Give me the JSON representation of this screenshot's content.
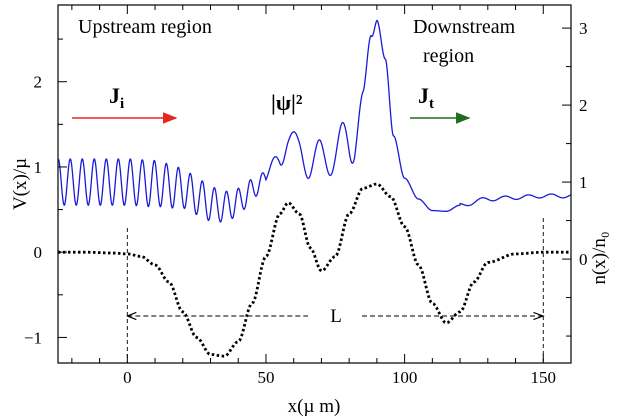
{
  "chart_data": {
    "type": "line",
    "xlabel": "x(µ m)",
    "ylabel_left": "V(x)/µ",
    "ylabel_right": "n(x)/n₀",
    "xlim": [
      -25,
      160
    ],
    "ylim_left": [
      -1.3,
      2.9
    ],
    "ylim_right": [
      -1.35,
      3.3
    ],
    "x_ticks": [
      0,
      50,
      100,
      150
    ],
    "x_tick_labels": [
      "0",
      "50",
      "100",
      "150"
    ],
    "y_left_ticks": [
      -1,
      0,
      1,
      2
    ],
    "y_left_tick_labels": [
      "−1",
      "0",
      "1",
      "2"
    ],
    "y_right_ticks": [
      0,
      1,
      2,
      3
    ],
    "y_right_tick_labels": [
      "0",
      "1",
      "2",
      "3"
    ],
    "grid": false,
    "series": [
      {
        "name": "potential V(x)/µ",
        "style": "dotted",
        "color": "#000000",
        "axis": "left",
        "x": [
          -25,
          -15,
          -5,
          0,
          5,
          10,
          15,
          20,
          25,
          30,
          35,
          40,
          45,
          50,
          55,
          58,
          62,
          66,
          70,
          75,
          80,
          85,
          90,
          95,
          100,
          105,
          110,
          115,
          120,
          125,
          130,
          140,
          150,
          160
        ],
        "y": [
          0,
          0,
          -0.01,
          -0.02,
          -0.05,
          -0.15,
          -0.35,
          -0.7,
          -1.0,
          -1.2,
          -1.22,
          -1.05,
          -0.6,
          -0.05,
          0.45,
          0.58,
          0.45,
          0.05,
          -0.22,
          -0.05,
          0.45,
          0.75,
          0.8,
          0.65,
          0.3,
          -0.15,
          -0.6,
          -0.83,
          -0.7,
          -0.35,
          -0.12,
          -0.02,
          0,
          0
        ]
      },
      {
        "name": "|ψ|²",
        "style": "solid",
        "color": "#1a1ad6",
        "axis": "right",
        "x": [
          -25,
          -10,
          0,
          10,
          20,
          25,
          30,
          35,
          40,
          45,
          50,
          55,
          58,
          62,
          66,
          70,
          75,
          80,
          85,
          88,
          90,
          93,
          96,
          100,
          105,
          110,
          115,
          120,
          130,
          140,
          150,
          160
        ],
        "y": [
          1.0,
          1.0,
          1.0,
          0.98,
          0.92,
          0.82,
          0.72,
          0.68,
          0.74,
          0.9,
          1.05,
          1.3,
          1.6,
          1.4,
          1.25,
          1.3,
          1.4,
          1.5,
          2.0,
          2.9,
          3.1,
          2.6,
          1.6,
          1.05,
          0.78,
          0.63,
          0.62,
          0.7,
          0.78,
          0.8,
          0.82,
          0.82
        ]
      }
    ],
    "annotations": {
      "upstream": "Upstream region",
      "downstream_line1": "Downstream",
      "downstream_line2": "region",
      "ji_main": "J",
      "ji_sub": "i",
      "jt_main": "J",
      "jt_sub": "t",
      "psi_label": "|ψ|²",
      "length_label": "L"
    },
    "colors": {
      "ji_arrow": "#e8261d",
      "jt_arrow": "#1f6b1f",
      "psi": "#1a1ad6"
    }
  }
}
